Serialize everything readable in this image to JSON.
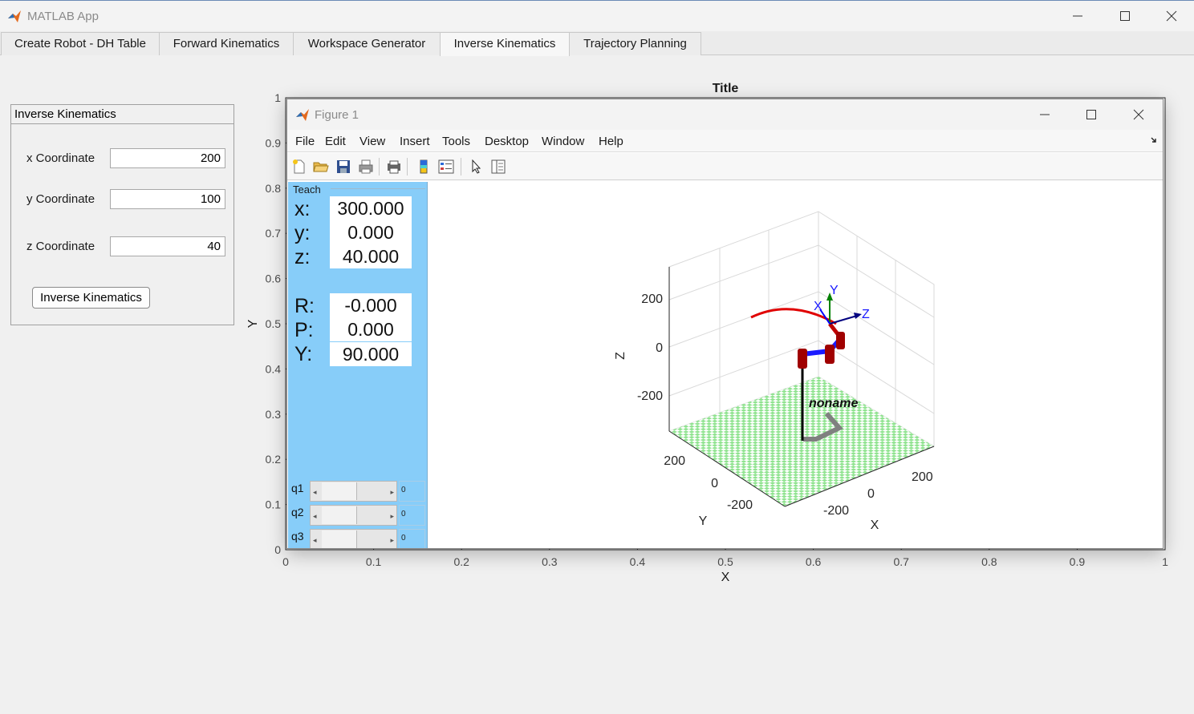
{
  "app": {
    "title": "MATLAB App"
  },
  "tabs": [
    {
      "label": "Create Robot - DH Table"
    },
    {
      "label": "Forward Kinematics"
    },
    {
      "label": "Workspace Generator"
    },
    {
      "label": "Inverse Kinematics"
    },
    {
      "label": "Trajectory Planning"
    }
  ],
  "active_tab": "Inverse Kinematics",
  "panel": {
    "title": "Inverse Kinematics",
    "x_label": "x Coordinate",
    "x_value": "200",
    "y_label": "y Coordinate",
    "y_value": "100",
    "z_label": "z Coordinate",
    "z_value": "40",
    "button_label": "Inverse Kinematics"
  },
  "axes": {
    "title": "Title",
    "xlabel": "X",
    "ylabel": "Y",
    "xlim": [
      0,
      1
    ],
    "ylim": [
      0,
      1
    ],
    "x_ticks": [
      "0",
      "0.1",
      "0.2",
      "0.3",
      "0.4",
      "0.5",
      "0.6",
      "0.7",
      "0.8",
      "0.9",
      "1"
    ],
    "y_ticks": [
      "0",
      "0.1",
      "0.2",
      "0.3",
      "0.4",
      "0.5",
      "0.6",
      "0.7",
      "0.8",
      "0.9",
      "1"
    ]
  },
  "figure": {
    "title": "Figure 1",
    "menu": [
      "File",
      "Edit",
      "View",
      "Insert",
      "Tools",
      "Desktop",
      "Window",
      "Help"
    ],
    "toolbar_icons": [
      "new-file-icon",
      "open-folder-icon",
      "save-icon",
      "print-icon",
      "print-preview-icon",
      "colorbar-icon",
      "legend-icon",
      "pointer-icon",
      "property-editor-icon"
    ]
  },
  "teach": {
    "title": "Teach",
    "x_label": "x:",
    "x": "300.000",
    "y_label": "y:",
    "y": "0.000",
    "z_label": "z:",
    "z": "40.000",
    "r_label": "R:",
    "roll": "-0.000",
    "p_label": "P:",
    "pitch": "0.000",
    "yaw_label": "Y:",
    "yaw": "90.000",
    "joints": [
      {
        "name": "q1",
        "value": "0"
      },
      {
        "name": "q2",
        "value": "0"
      },
      {
        "name": "q3",
        "value": "0"
      }
    ]
  },
  "plot3d": {
    "z_label": "Z",
    "y_label": "Y",
    "x_label": "X",
    "z_ticks": [
      "200",
      "0",
      "-200"
    ],
    "y_ticks": [
      "200",
      "0",
      "-200"
    ],
    "x_ticks": [
      "200",
      "0",
      "-200"
    ],
    "robot_name": "noname",
    "frame_labels": {
      "x": "X",
      "y": "Y",
      "z": "Z"
    },
    "colors": {
      "floor_a": "#8fe38f",
      "floor_b": "#ffffff",
      "link": "#1a1aff",
      "joint": "#a00000",
      "trail": "#e00000",
      "shadow": "#808080"
    }
  }
}
